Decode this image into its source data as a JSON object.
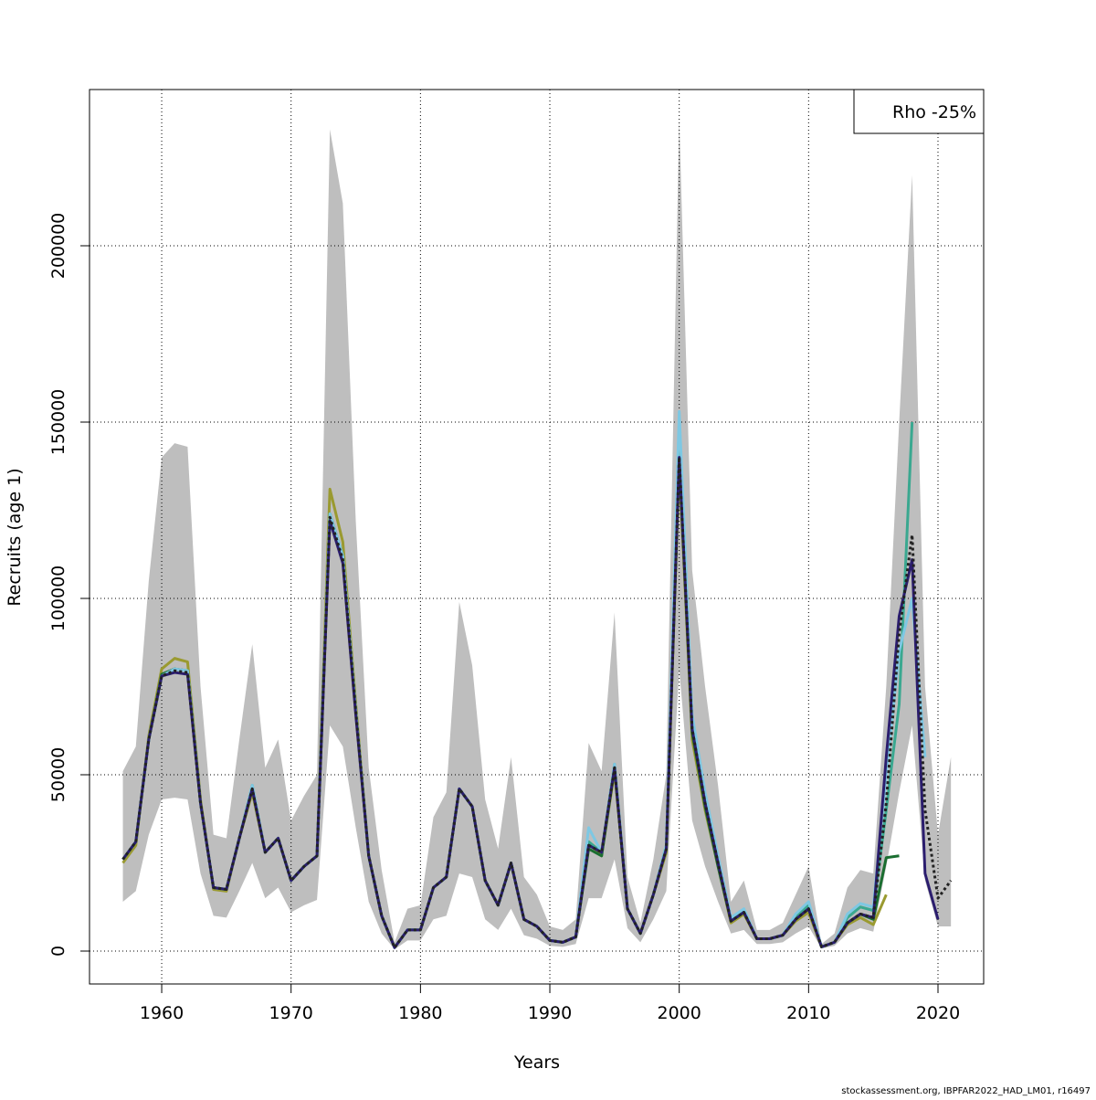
{
  "chart_data": {
    "type": "line",
    "xlabel": "Years",
    "ylabel": "Recruits (age 1)",
    "legend_text": "Rho -25%",
    "legend_position": "top-right",
    "footer": "stockassessment.org, IBPFAR2022_HAD_LM01, r16497",
    "grid": true,
    "xlim": [
      1954.42,
      2023.53
    ],
    "ylim": [
      -9326,
      244300
    ],
    "xticks": [
      1960,
      1970,
      1980,
      1990,
      2000,
      2010,
      2020
    ],
    "yticks": [
      0,
      50000,
      100000,
      150000,
      200000
    ],
    "x": [
      1957,
      1958,
      1959,
      1960,
      1961,
      1962,
      1963,
      1964,
      1965,
      1966,
      1967,
      1968,
      1969,
      1970,
      1971,
      1972,
      1973,
      1974,
      1975,
      1976,
      1977,
      1978,
      1979,
      1980,
      1981,
      1982,
      1983,
      1984,
      1985,
      1986,
      1987,
      1988,
      1989,
      1990,
      1991,
      1992,
      1993,
      1994,
      1995,
      1996,
      1997,
      1998,
      1999,
      2000,
      2001,
      2002,
      2003,
      2004,
      2005,
      2006,
      2007,
      2008,
      2009,
      2010,
      2011,
      2012,
      2013,
      2014,
      2015,
      2016,
      2017,
      2018,
      2019,
      2020,
      2021
    ],
    "band": {
      "color": "#bebebe",
      "upper": [
        51000,
        58000,
        105000,
        140000,
        144000,
        143000,
        75000,
        33000,
        32000,
        60000,
        87000,
        52000,
        60000,
        37000,
        44000,
        50000,
        233000,
        212000,
        122000,
        52000,
        23000,
        2500,
        12000,
        13000,
        38000,
        45000,
        99000,
        81000,
        43000,
        29000,
        55000,
        21000,
        16000,
        7000,
        6000,
        9000,
        59000,
        51000,
        96000,
        21000,
        8000,
        26000,
        50000,
        236000,
        108000,
        75000,
        47000,
        14000,
        20000,
        6000,
        6000,
        8000,
        16000,
        24000,
        2000,
        5000,
        18000,
        23000,
        22000,
        75000,
        150000,
        220000,
        75000,
        33000,
        55000
      ],
      "lower": [
        14000,
        17000,
        33000,
        43000,
        43500,
        43000,
        22000,
        10000,
        9500,
        17000,
        25000,
        15000,
        18000,
        11000,
        13000,
        14500,
        64000,
        58000,
        35000,
        14000,
        5000,
        500,
        3000,
        3000,
        9000,
        10000,
        22000,
        21000,
        9000,
        6000,
        12000,
        4500,
        3500,
        1500,
        1200,
        2000,
        15000,
        15000,
        26000,
        6500,
        2500,
        9000,
        17000,
        80000,
        37000,
        24000,
        14000,
        5000,
        6000,
        2000,
        2000,
        2500,
        5000,
        7000,
        700,
        1500,
        5000,
        6500,
        5500,
        24000,
        45000,
        64000,
        20000,
        7000,
        7000
      ]
    },
    "series": [
      {
        "color": "#9a9a30",
        "values": [
          25000,
          30000,
          61000,
          80000,
          83000,
          82000,
          43000,
          17500,
          17000,
          32000,
          45000,
          28000,
          32000,
          20000,
          24000,
          27000,
          131000,
          116000,
          70000,
          27000,
          10000,
          1000,
          6000,
          6000,
          18000,
          21000,
          46000,
          41000,
          20000,
          13000,
          25000,
          9000,
          7000,
          3000,
          2500,
          4000,
          31000,
          27000,
          51000,
          12000,
          5000,
          16000,
          28000,
          138000,
          60000,
          40000,
          24000,
          8000,
          10500,
          3500,
          3500,
          4500,
          8500,
          11000,
          1200,
          2500,
          7500,
          9500,
          7500,
          16000,
          null,
          null,
          null,
          null,
          null
        ]
      },
      {
        "color": "#1a6e30",
        "values": [
          26000,
          31000,
          60000,
          78500,
          80000,
          79500,
          42000,
          18000,
          17500,
          32000,
          46000,
          28000,
          32000,
          20000,
          24000,
          27000,
          124000,
          112000,
          68000,
          27000,
          10000,
          1000,
          6000,
          6000,
          18000,
          21000,
          46000,
          41000,
          20000,
          13000,
          25000,
          9000,
          7000,
          3000,
          2500,
          4000,
          29000,
          27000,
          52000,
          12000,
          5000,
          16000,
          29000,
          140000,
          62000,
          41000,
          24000,
          8500,
          11000,
          3500,
          3500,
          4500,
          9000,
          12000,
          1200,
          2500,
          8000,
          10500,
          9000,
          26500,
          27000,
          null,
          null,
          null,
          null
        ]
      },
      {
        "color": "#3aa890",
        "values": [
          26000,
          31000,
          60000,
          78000,
          80000,
          79500,
          42000,
          18000,
          17500,
          32000,
          47000,
          28000,
          32000,
          20000,
          24000,
          27000,
          124000,
          112000,
          68000,
          27000,
          10000,
          1000,
          6000,
          6000,
          18000,
          21000,
          46000,
          41000,
          20000,
          13000,
          25000,
          9000,
          7000,
          3000,
          2500,
          4000,
          31000,
          28000,
          53000,
          12000,
          5000,
          16000,
          30000,
          145000,
          65000,
          44000,
          26000,
          9000,
          11500,
          3500,
          3500,
          4500,
          10000,
          13000,
          1200,
          2500,
          9500,
          12500,
          11500,
          40000,
          70000,
          150000,
          null,
          null,
          null
        ]
      },
      {
        "color": "#7ec8e3",
        "values": [
          26000,
          31000,
          60000,
          78000,
          80000,
          79500,
          42000,
          18000,
          17500,
          32000,
          47000,
          28000,
          32000,
          20000,
          24000,
          27000,
          124000,
          112000,
          68000,
          27000,
          10000,
          1000,
          6000,
          6000,
          18000,
          21000,
          46000,
          41000,
          20000,
          13000,
          25000,
          9000,
          7000,
          3000,
          2500,
          4000,
          35000,
          28000,
          53000,
          12000,
          5000,
          16000,
          30000,
          153000,
          67000,
          45000,
          27000,
          9500,
          12000,
          3500,
          3500,
          4500,
          10500,
          14000,
          1200,
          2500,
          10500,
          13500,
          12500,
          50000,
          85000,
          100000,
          55000,
          null,
          null
        ]
      },
      {
        "color": "#2b1d6e",
        "values": [
          26000,
          31000,
          60000,
          78000,
          79000,
          78500,
          42000,
          18000,
          17500,
          32000,
          46000,
          28000,
          32000,
          20000,
          24000,
          27000,
          122000,
          110000,
          67000,
          27000,
          10000,
          1000,
          6000,
          6000,
          18000,
          21000,
          46000,
          41000,
          20000,
          13000,
          25000,
          9000,
          7000,
          3000,
          2500,
          4000,
          30000,
          28000,
          52000,
          12000,
          5000,
          16000,
          29000,
          140000,
          63000,
          42000,
          25000,
          8500,
          11000,
          3500,
          3500,
          4500,
          9000,
          12000,
          1200,
          2500,
          8000,
          10500,
          9500,
          55000,
          95000,
          111000,
          22000,
          9000,
          null
        ]
      },
      {
        "color": "#222222",
        "dashed": true,
        "values": [
          26000,
          31000,
          60000,
          78000,
          79500,
          79000,
          42000,
          18000,
          17500,
          32000,
          46000,
          28000,
          32000,
          20000,
          24000,
          27000,
          123000,
          111000,
          68000,
          27000,
          10000,
          1000,
          6000,
          6000,
          18000,
          21000,
          46000,
          41000,
          20000,
          13000,
          25000,
          9000,
          7000,
          3000,
          2500,
          4000,
          30000,
          28000,
          52000,
          12000,
          5000,
          16000,
          29000,
          140000,
          63000,
          42000,
          25000,
          8500,
          11000,
          3500,
          3500,
          4500,
          9000,
          12000,
          1200,
          2500,
          8000,
          10500,
          9500,
          42000,
          90000,
          118000,
          40000,
          15000,
          20000
        ]
      }
    ]
  }
}
